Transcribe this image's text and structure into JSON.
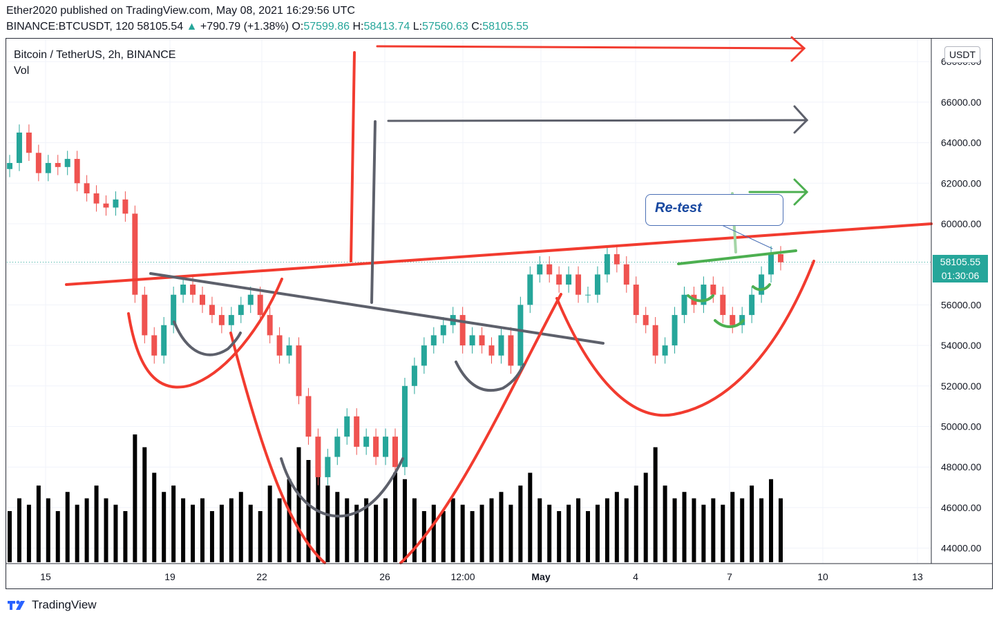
{
  "header": {
    "line1": "Ether2020 published on TradingView.com, May 08, 2021 16:29:56 UTC",
    "symbol": "BINANCE:BTCUSDT, 120",
    "price": "58105.54",
    "change_arrow": "▲",
    "change": "+790.79 (+1.38%)",
    "o_label": "O:",
    "o": "57599.86",
    "h_label": "H:",
    "h": "58413.74",
    "l_label": "L:",
    "l": "57560.63",
    "c_label": "C:",
    "c": "58105.55"
  },
  "legend": {
    "title": "Bitcoin / TetherUS, 2h, BINANCE",
    "vol": "Vol"
  },
  "currency_badge": "USDT",
  "current_price": {
    "value": "58105.55",
    "countdown": "01:30:06"
  },
  "annotation": {
    "text": "Re-test"
  },
  "footer": {
    "brand": "TradingView",
    "logo_icon": "tradingview-logo-icon"
  },
  "colors": {
    "up": "#26a69a",
    "down": "#ef5350",
    "red_line": "#f23b2f",
    "gray_line": "#5d606b",
    "green_line": "#4caf50"
  },
  "chart_data": {
    "type": "candlestick",
    "y_ticks": [
      "68000.00",
      "66000.00",
      "64000.00",
      "62000.00",
      "60000.00",
      "58000.00",
      "56000.00",
      "54000.00",
      "52000.00",
      "50000.00",
      "48000.00",
      "46000.00",
      "44000.00"
    ],
    "x_ticks": [
      "15",
      "19",
      "22",
      "26",
      "12:00",
      "May",
      "4",
      "7",
      "10",
      "13"
    ],
    "ylim": [
      43000,
      69000
    ],
    "close_series": [
      63000,
      64500,
      63500,
      62500,
      63000,
      62800,
      63200,
      62000,
      61500,
      61000,
      60800,
      61200,
      60500,
      56500,
      54500,
      53500,
      55000,
      56500,
      57000,
      56500,
      56000,
      55500,
      55000,
      55500,
      56000,
      56500,
      55500,
      54500,
      53500,
      54000,
      51500,
      49500,
      47500,
      48500,
      49500,
      50500,
      49000,
      49500,
      48500,
      49500,
      48000,
      52000,
      53000,
      54000,
      54500,
      55000,
      55500,
      54000,
      54500,
      54000,
      53500,
      54500,
      53000,
      56000,
      57500,
      58000,
      57500,
      57000,
      57500,
      56500,
      56500,
      57500,
      58500,
      58000,
      57000,
      55500,
      55000,
      53500,
      54000,
      55500,
      56500,
      56000,
      57000,
      56500,
      55500,
      55000,
      55500,
      56500,
      57500,
      58500,
      58100
    ],
    "volume_series": [
      0.4,
      0.5,
      0.45,
      0.6,
      0.5,
      0.4,
      0.55,
      0.45,
      0.5,
      0.6,
      0.5,
      0.45,
      0.4,
      1.0,
      0.9,
      0.7,
      0.55,
      0.6,
      0.5,
      0.45,
      0.5,
      0.4,
      0.45,
      0.5,
      0.55,
      0.45,
      0.4,
      0.6,
      0.5,
      0.65,
      0.9,
      0.8,
      0.7,
      0.6,
      0.55,
      0.5,
      0.45,
      0.5,
      0.45,
      0.5,
      0.7,
      0.65,
      0.5,
      0.4,
      0.45,
      0.4,
      0.5,
      0.45,
      0.4,
      0.45,
      0.5,
      0.55,
      0.45,
      0.6,
      0.7,
      0.5,
      0.45,
      0.4,
      0.45,
      0.5,
      0.4,
      0.45,
      0.5,
      0.55,
      0.5,
      0.6,
      0.7,
      0.9,
      0.6,
      0.5,
      0.55,
      0.5,
      0.45,
      0.5,
      0.45,
      0.55,
      0.5,
      0.6,
      0.5,
      0.65,
      0.5
    ]
  }
}
